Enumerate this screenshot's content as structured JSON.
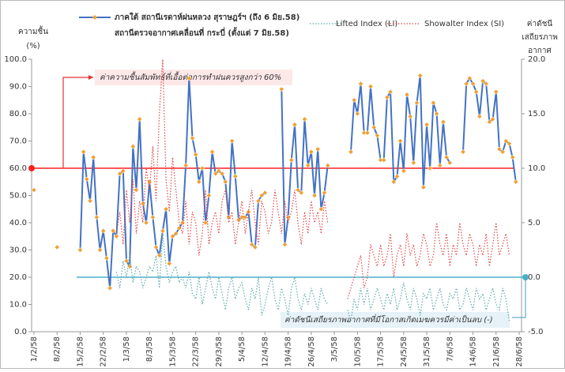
{
  "chart_data": {
    "type": "line",
    "legend_note": "สถานีตรวจอากาศเคลื่อนที่ กระบี่ (ตั้งแต่ 7 มิย.58)",
    "ylabel": [
      "ความชื้น",
      "(%)"
    ],
    "y2label": [
      "ค่าดัชนี",
      "เสถียรภาพ",
      "อากาศ"
    ],
    "categories": [
      "1/2/58",
      null,
      null,
      null,
      null,
      null,
      null,
      "8/2/58",
      null,
      null,
      null,
      null,
      null,
      null,
      "15/2/58",
      null,
      null,
      null,
      null,
      null,
      null,
      "22/2/58",
      null,
      null,
      null,
      null,
      null,
      null,
      "1/3/58",
      null,
      null,
      null,
      null,
      null,
      null,
      "8/3/58",
      null,
      null,
      null,
      null,
      null,
      null,
      "15/3/58",
      null,
      null,
      null,
      null,
      null,
      null,
      "22/3/58",
      null,
      null,
      null,
      null,
      null,
      null,
      "29/3/58",
      null,
      null,
      null,
      null,
      null,
      null,
      "5/4/58",
      null,
      null,
      null,
      null,
      null,
      null,
      "12/4/58",
      null,
      null,
      null,
      null,
      null,
      null,
      "19/4/58",
      null,
      null,
      null,
      null,
      null,
      null,
      "26/4/58",
      null,
      null,
      null,
      null,
      null,
      null,
      "3/5/58",
      null,
      null,
      null,
      null,
      null,
      null,
      "10/5/58",
      null,
      null,
      null,
      null,
      null,
      null,
      "17/5/58",
      null,
      null,
      null,
      null,
      null,
      null,
      "24/5/58",
      null,
      null,
      null,
      null,
      null,
      null,
      "31/5/58",
      null,
      null,
      null,
      null,
      null,
      null,
      "7/6/58",
      null,
      null,
      null,
      null,
      null,
      null,
      "14/6/58",
      null,
      null,
      null,
      null,
      null,
      null,
      "21/6/58",
      null,
      null,
      null,
      null,
      null,
      null,
      "28/6/58"
    ],
    "series": [
      {
        "name": "ภาคใต้ สถานีเรดาห์ฝนหลวง สุราษฎร์ฯ (ถึง 6 มิย.58)",
        "color": "#4472c4",
        "marker_color": "#f0a030",
        "style": "solid",
        "axis": "y",
        "values": [
          52,
          null,
          null,
          null,
          null,
          null,
          null,
          31,
          null,
          null,
          null,
          null,
          null,
          null,
          30,
          66,
          56,
          48,
          64,
          42,
          30,
          37,
          27,
          16,
          37,
          35,
          58,
          59,
          26,
          24,
          68,
          52,
          78,
          47,
          40,
          55,
          42,
          31,
          28,
          37,
          45,
          25,
          35,
          36,
          38,
          40,
          61,
          93,
          71,
          65,
          55,
          60,
          40,
          50,
          66,
          58,
          59,
          58,
          55,
          42,
          70,
          57,
          41,
          42,
          42,
          44,
          32,
          31,
          48,
          50,
          51,
          null,
          null,
          null,
          null,
          89,
          32,
          42,
          63,
          76,
          52,
          51,
          78,
          61,
          66,
          50,
          67,
          45,
          51,
          61,
          null,
          null,
          null,
          null,
          null,
          null,
          66,
          85,
          80,
          91,
          73,
          73,
          90,
          75,
          72,
          63,
          63,
          86,
          88,
          55,
          57,
          70,
          59,
          87,
          79,
          62,
          84,
          94,
          53,
          76,
          60,
          84,
          80,
          61,
          77,
          64,
          62,
          null,
          null,
          null,
          66,
          91,
          93,
          91,
          88,
          79,
          92,
          91,
          77,
          78,
          88,
          67,
          66,
          70,
          69,
          64,
          55,
          null
        ]
      },
      {
        "name": "Lifted Index (LI)",
        "color": "#5fa8a8",
        "style": "dotted",
        "axis": "y2",
        "values": [
          null,
          null,
          null,
          null,
          null,
          null,
          null,
          null,
          null,
          null,
          null,
          null,
          null,
          null,
          null,
          null,
          null,
          null,
          null,
          null,
          null,
          null,
          null,
          null,
          null,
          0.5,
          -1,
          1.5,
          0,
          2,
          -0.5,
          1,
          0.5,
          -1,
          0,
          1,
          0.5,
          2,
          -1,
          4,
          1,
          -0.5,
          0.5,
          1,
          -0.5,
          0,
          -1,
          0.5,
          -1.5,
          -2,
          0,
          -2.5,
          -1,
          0.5,
          -1,
          -2,
          0,
          -1.5,
          -3,
          -1,
          0,
          -2,
          -1,
          -0.5,
          -2,
          -3,
          -1,
          -2,
          0,
          -3.5,
          -2.5,
          -1,
          0,
          -2,
          -3,
          -1,
          -2,
          -3.5,
          -1,
          0,
          -2,
          -3,
          -1.5,
          -2.5,
          -1,
          -2,
          -3,
          -1,
          -2,
          -2.5,
          null,
          null,
          null,
          null,
          null,
          -3,
          -4,
          -2,
          -3,
          -1,
          -2.5,
          -1,
          -3,
          -2,
          -1,
          -2,
          -3,
          -1.5,
          -2.5,
          -1,
          -3,
          -2,
          -0.5,
          -2,
          -3,
          -1,
          -2,
          -3.5,
          -1.5,
          -2,
          -1,
          -3,
          -2,
          -1,
          -2.5,
          -3,
          -1.5,
          -2,
          -1,
          -3,
          -2.5,
          -1,
          -2,
          -3,
          -1,
          -2,
          -1.5,
          -3,
          -2,
          -1,
          -2.5,
          -3,
          -1,
          -2,
          -4,
          null,
          null,
          null
        ]
      },
      {
        "name": "Showalter Index (SI)",
        "color": "#e04848",
        "style": "dotted",
        "axis": "y2",
        "values": [
          null,
          null,
          null,
          null,
          null,
          null,
          null,
          null,
          null,
          null,
          null,
          null,
          null,
          null,
          null,
          null,
          null,
          null,
          null,
          null,
          null,
          null,
          null,
          null,
          null,
          4,
          6,
          3,
          8,
          5,
          9,
          4,
          7,
          5,
          10,
          8,
          12,
          7,
          15,
          20,
          9,
          6,
          11,
          8,
          5,
          4,
          7,
          3,
          6,
          5,
          2,
          4,
          8,
          3,
          5,
          6,
          4,
          7,
          8,
          5,
          6,
          3,
          5,
          7,
          4,
          6,
          8,
          5,
          3,
          7,
          6,
          4,
          5,
          8,
          6,
          4,
          7,
          5,
          6,
          8,
          5,
          3,
          6,
          4,
          7,
          5,
          6,
          4,
          7,
          5,
          null,
          null,
          null,
          null,
          null,
          -2,
          -1,
          0,
          1,
          2,
          -1,
          0,
          3,
          2,
          1,
          3,
          1,
          2,
          4,
          0,
          2,
          3,
          1,
          4,
          2,
          3,
          1,
          2,
          4,
          3,
          1,
          2,
          5,
          3,
          2,
          4,
          1,
          3,
          2,
          5,
          3,
          2,
          4,
          3,
          1,
          3,
          2,
          4,
          1,
          3,
          5,
          2,
          3,
          4,
          2,
          null,
          null,
          null
        ]
      }
    ],
    "ylim": [
      0,
      100
    ],
    "yticks": [
      {
        "value": 0,
        "label": "0.0"
      },
      {
        "value": 10,
        "label": "10.0"
      },
      {
        "value": 20,
        "label": "20.0"
      },
      {
        "value": 30,
        "label": "30.0"
      },
      {
        "value": 40,
        "label": "40.0"
      },
      {
        "value": 50,
        "label": "50.0"
      },
      {
        "value": 60,
        "label": "60.0"
      },
      {
        "value": 70,
        "label": "70.0"
      },
      {
        "value": 80,
        "label": "80.0"
      },
      {
        "value": 90,
        "label": "90.0"
      },
      {
        "value": 100,
        "label": "100.0"
      }
    ],
    "y2lim": [
      -5,
      20
    ],
    "y2ticks": [
      {
        "value": -5,
        "label": "-5.0"
      },
      {
        "value": 0,
        "label": "0.0"
      },
      {
        "value": 5,
        "label": "5.0"
      },
      {
        "value": 10,
        "label": "10.0"
      },
      {
        "value": 15,
        "label": "15.0"
      },
      {
        "value": 20,
        "label": "20.0"
      }
    ],
    "reference_lines": [
      {
        "value": 60,
        "axis": "y",
        "color": "#ff2020"
      },
      {
        "value": 0,
        "axis": "y2",
        "color": "#4bb0cc"
      }
    ],
    "annotations": [
      {
        "text": "ค่าความชื้นสัมพัทธ์ที่เอื้อต่อการทำฝนควรสูงกว่า 60%",
        "color": "#e03030"
      },
      {
        "text": "ค่าดัชนีเสถียรภาพอากาศที่มีโอกาสเกิดเมฆควรมีค่าเป็นลบ (-)",
        "color": "#3aa0c0"
      }
    ]
  }
}
